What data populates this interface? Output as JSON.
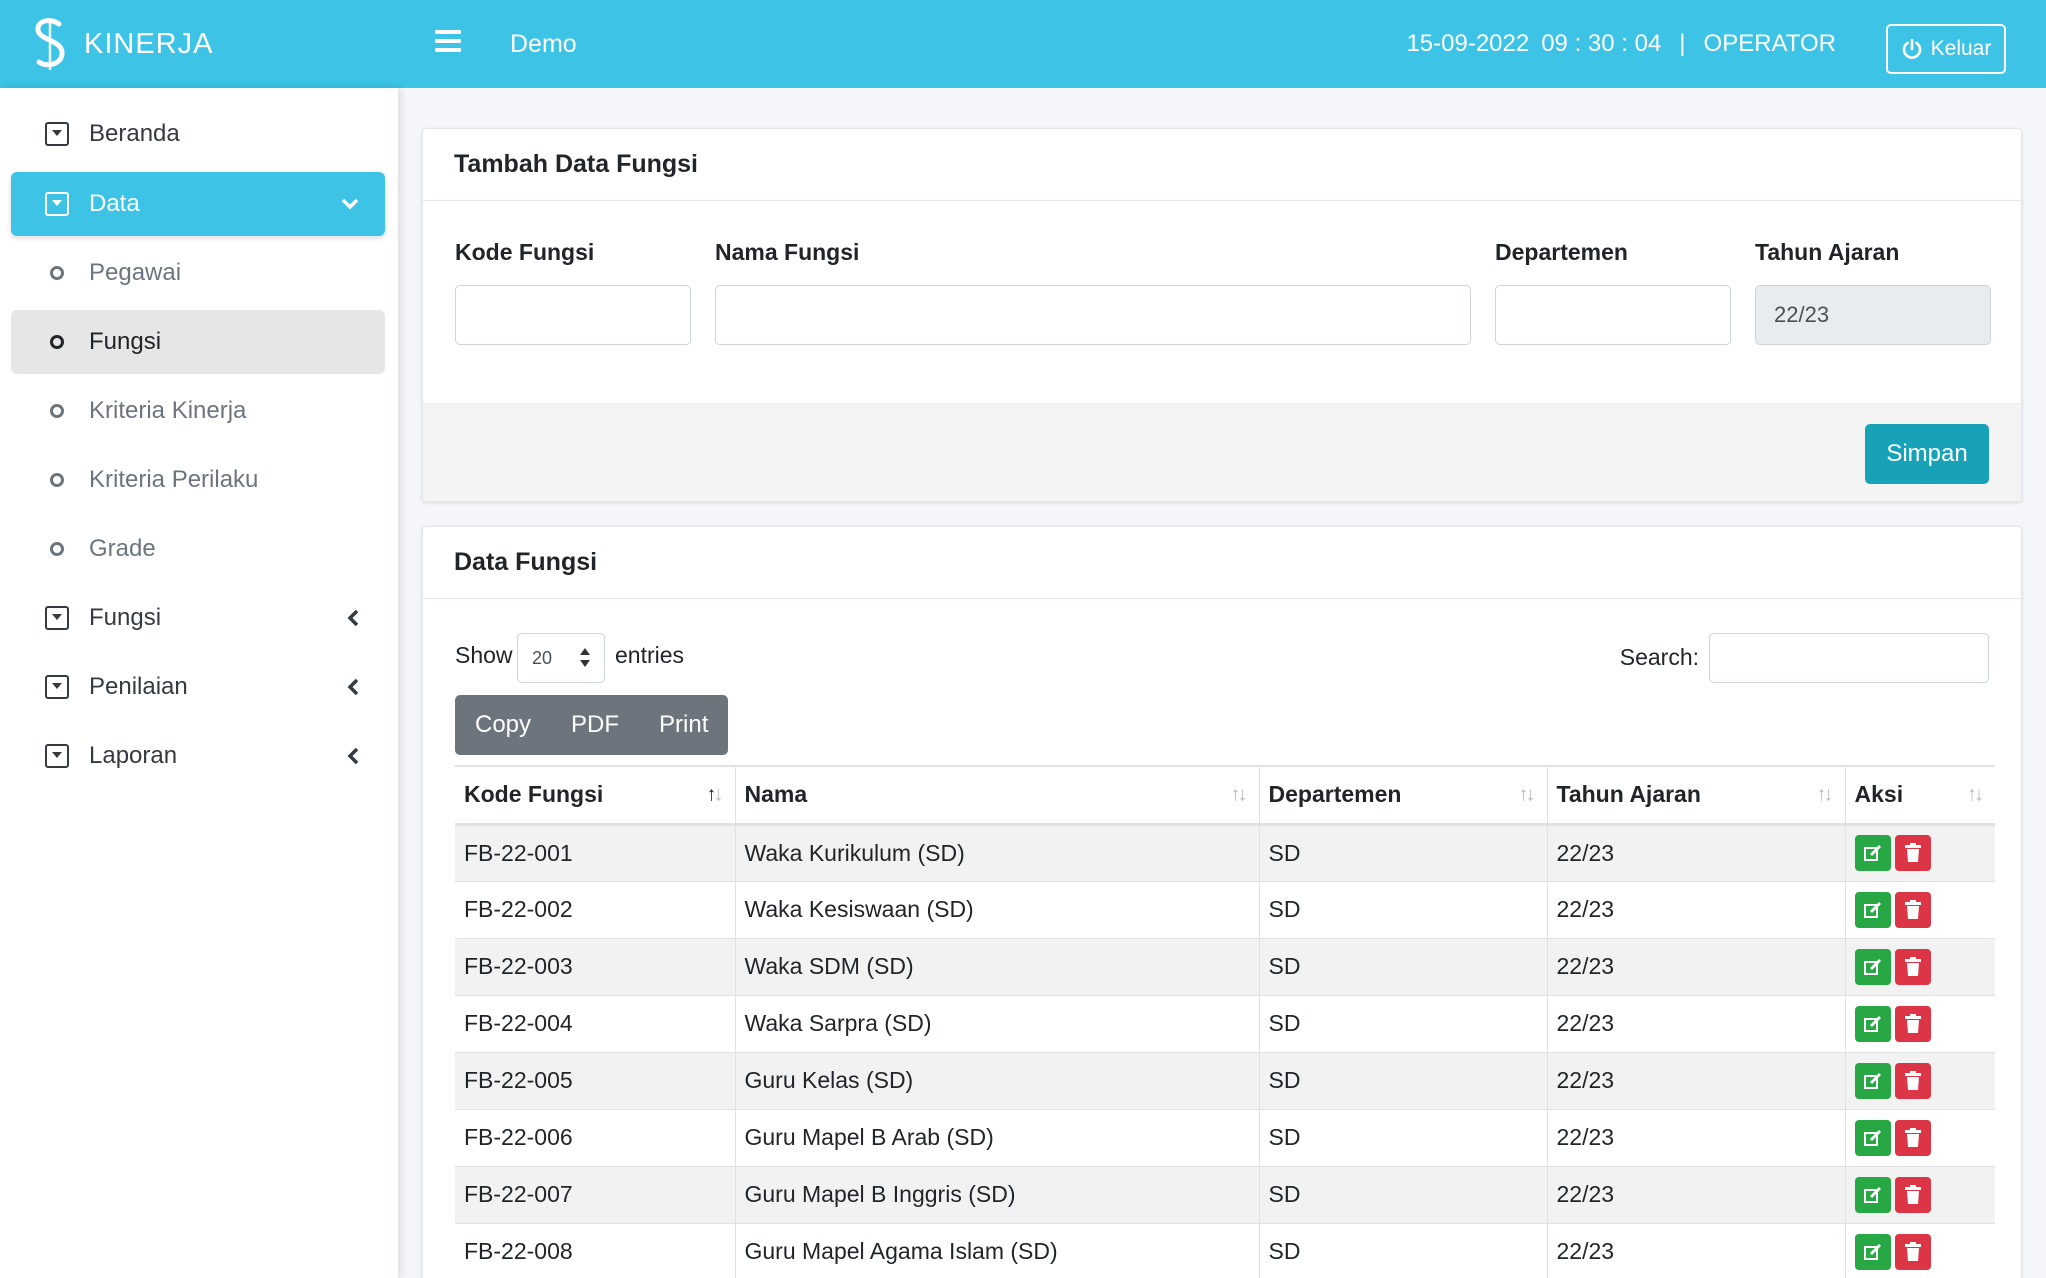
{
  "brand": {
    "name": "KINERJA"
  },
  "navbar": {
    "org": "Demo",
    "date": "15-09-2022",
    "time": "09 : 30 : 04",
    "separator": "|",
    "role": "OPERATOR",
    "logout_label": "Keluar"
  },
  "sidebar": {
    "items": [
      {
        "label": "Beranda"
      },
      {
        "label": "Data"
      },
      {
        "label": "Pegawai"
      },
      {
        "label": "Fungsi"
      },
      {
        "label": "Kriteria Kinerja"
      },
      {
        "label": "Kriteria Perilaku"
      },
      {
        "label": "Grade"
      },
      {
        "label": "Fungsi"
      },
      {
        "label": "Penilaian"
      },
      {
        "label": "Laporan"
      }
    ]
  },
  "form": {
    "title": "Tambah Data Fungsi",
    "fields": {
      "kode": {
        "label": "Kode Fungsi",
        "value": ""
      },
      "nama": {
        "label": "Nama Fungsi",
        "value": ""
      },
      "departemen": {
        "label": "Departemen",
        "value": ""
      },
      "tahun": {
        "label": "Tahun Ajaran",
        "value": "22/23"
      }
    },
    "save_label": "Simpan"
  },
  "table": {
    "title": "Data Fungsi",
    "show_label": "Show",
    "entries_value": "20",
    "entries_label": "entries",
    "search_label": "Search:",
    "buttons": {
      "copy": "Copy",
      "pdf": "PDF",
      "print": "Print"
    },
    "columns": [
      "Kode Fungsi",
      "Nama",
      "Departemen",
      "Tahun Ajaran",
      "Aksi"
    ],
    "rows": [
      {
        "kode": "FB-22-001",
        "nama": "Waka Kurikulum (SD)",
        "dept": "SD",
        "tahun": "22/23"
      },
      {
        "kode": "FB-22-002",
        "nama": "Waka Kesiswaan (SD)",
        "dept": "SD",
        "tahun": "22/23"
      },
      {
        "kode": "FB-22-003",
        "nama": "Waka SDM (SD)",
        "dept": "SD",
        "tahun": "22/23"
      },
      {
        "kode": "FB-22-004",
        "nama": "Waka Sarpra (SD)",
        "dept": "SD",
        "tahun": "22/23"
      },
      {
        "kode": "FB-22-005",
        "nama": "Guru Kelas (SD)",
        "dept": "SD",
        "tahun": "22/23"
      },
      {
        "kode": "FB-22-006",
        "nama": "Guru Mapel B Arab (SD)",
        "dept": "SD",
        "tahun": "22/23"
      },
      {
        "kode": "FB-22-007",
        "nama": "Guru Mapel B Inggris (SD)",
        "dept": "SD",
        "tahun": "22/23"
      },
      {
        "kode": "FB-22-008",
        "nama": "Guru Mapel Agama Islam (SD)",
        "dept": "SD",
        "tahun": "22/23"
      }
    ]
  },
  "colors": {
    "primary": "#3cc3e5",
    "info": "#17a2b8",
    "success": "#28a745",
    "danger": "#dc3545",
    "secondary": "#6c757d"
  },
  "icons": {
    "brand": "s-logo-icon",
    "menu": "hamburger-icon",
    "logout": "power-icon",
    "nav_item": "square-caret-icon",
    "sub_item": "circle-icon",
    "expand": "chevron-down-icon",
    "collapse": "chevron-left-icon",
    "edit": "edit-icon",
    "delete": "trash-icon"
  }
}
